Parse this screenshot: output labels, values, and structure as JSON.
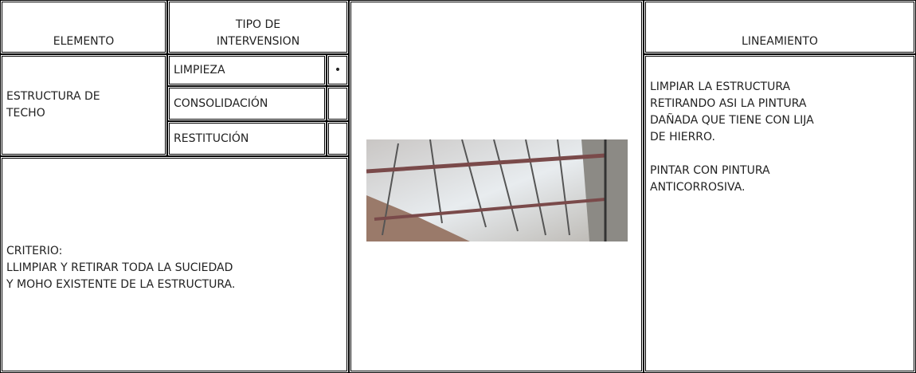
{
  "header": {
    "elemento": "ELEMENTO",
    "tipo": [
      "TIPO DE",
      "INTERVENSION"
    ],
    "lineamiento": "LINEAMIENTO"
  },
  "elemento": [
    "ESTRUCTURA DE",
    "TECHO"
  ],
  "intervenciones": [
    {
      "label": "LIMPIEZA",
      "mark": "•"
    },
    {
      "label": "CONSOLIDACIÓN"
    },
    {
      "label": "RESTITUCIÓN"
    }
  ],
  "criterio": {
    "title": "CRITERIO:",
    "lines": [
      "LLIMPIAR Y RETIRAR TODA LA SUCIEDAD",
      "Y MOHO EXISTENTE DE LA ESTRUCTURA."
    ]
  },
  "lineamiento": [
    [
      "LIMPIAR LA ESTRUCTURA",
      "RETIRANDO ASI LA PINTURA",
      "DAÑADA QUE TIENE CON LIJA",
      "DE HIERRO."
    ],
    [
      "PINTAR CON PINTURA",
      "ANTICORROSIVA."
    ]
  ]
}
